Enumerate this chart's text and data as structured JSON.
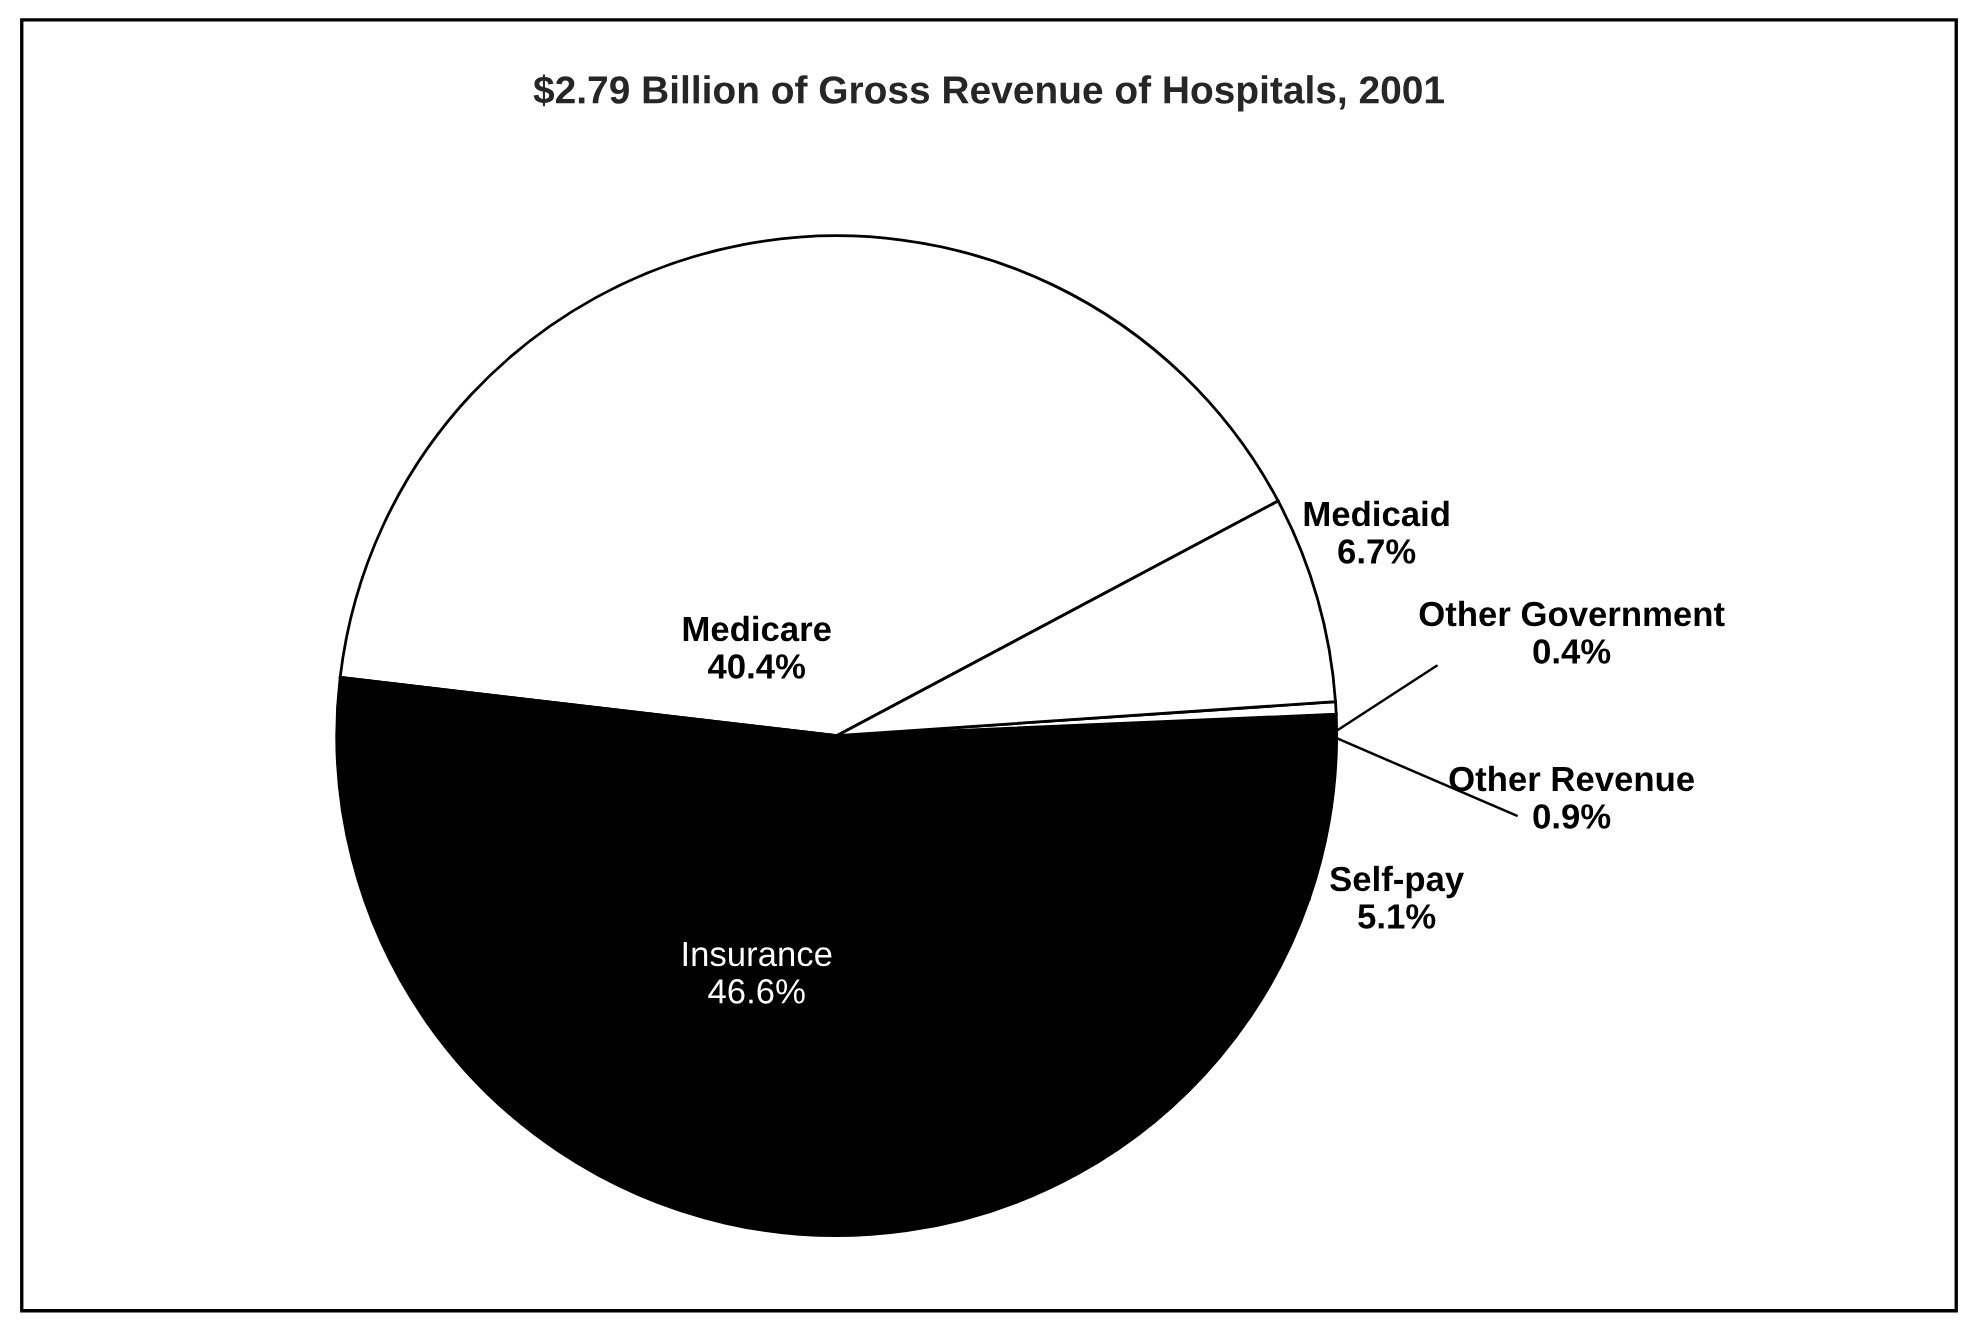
{
  "chart_data": {
    "type": "pie",
    "title": "$2.79 Billion of Gross Revenue of Hospitals, 2001",
    "categories": [
      "Medicare",
      "Insurance",
      "Self-pay",
      "Other Revenue",
      "Other Government",
      "Medicaid"
    ],
    "values": [
      40.4,
      46.6,
      5.1,
      0.9,
      0.4,
      6.7
    ],
    "value_labels": [
      "40.4%",
      "46.6%",
      "5.1%",
      "0.9%",
      "0.4%",
      "6.7%"
    ],
    "colors": [
      "#ffffff",
      "#000000",
      "#000000",
      "#000000",
      "#ffffff",
      "#ffffff"
    ]
  }
}
